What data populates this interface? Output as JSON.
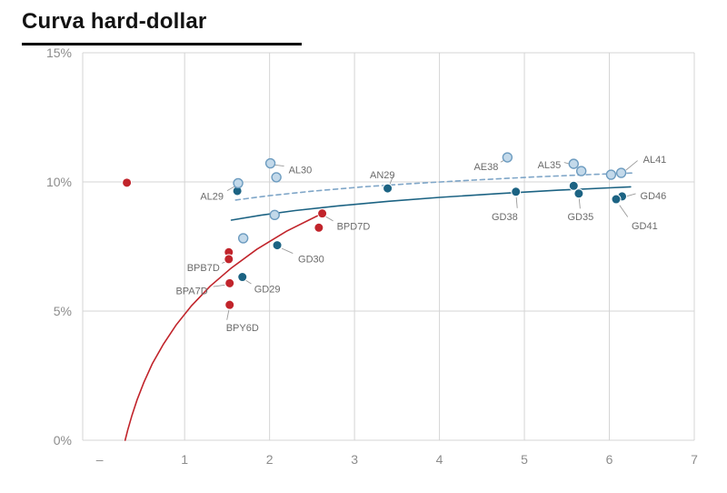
{
  "header": {
    "title": "Curva hard-dollar"
  },
  "chart_data": {
    "type": "scatter",
    "title": "Curva hard-dollar",
    "xlabel": "",
    "ylabel": "",
    "xlim": [
      -0.2,
      7
    ],
    "ylim": [
      0,
      15
    ],
    "grid": true,
    "legend": "none",
    "x_ticks": [
      {
        "v": 0,
        "label": "–",
        "grid": false
      },
      {
        "v": 1,
        "label": "1",
        "grid": true
      },
      {
        "v": 2,
        "label": "2",
        "grid": true
      },
      {
        "v": 3,
        "label": "3",
        "grid": true
      },
      {
        "v": 4,
        "label": "4",
        "grid": true
      },
      {
        "v": 5,
        "label": "5",
        "grid": true
      },
      {
        "v": 6,
        "label": "6",
        "grid": true
      },
      {
        "v": 7,
        "label": "7",
        "grid": true
      }
    ],
    "y_ticks": [
      {
        "v": 0,
        "label": "0%"
      },
      {
        "v": 5,
        "label": "5%"
      },
      {
        "v": 10,
        "label": "10%"
      },
      {
        "v": 15,
        "label": "15%"
      }
    ],
    "colors": {
      "red": "#c1242b",
      "dark_blue": "#1c6383",
      "light_blue_fill": "#c3d9ea",
      "light_blue_stroke": "#6d9cc0",
      "dashed_line": "#7fa6c8",
      "grid": "#d4d4d4",
      "axis_text": "#8c8c8c",
      "point_label": "#6b6b6b",
      "leader": "#9a9a9a"
    },
    "series": [
      {
        "name": "red-points",
        "style": "filled",
        "color_key": "red",
        "points": [
          {
            "x": 0.32,
            "y": 9.97
          },
          {
            "x": 1.52,
            "y": 7.28
          },
          {
            "x": 1.52,
            "y": 7.01,
            "label": "BPB7D",
            "dx": -10,
            "dy": 10,
            "anchor": "end"
          },
          {
            "x": 1.53,
            "y": 6.08,
            "label": "BPA7D",
            "dx": -24,
            "dy": 9,
            "anchor": "end"
          },
          {
            "x": 1.53,
            "y": 5.24,
            "label": "BPY6D",
            "dx": -4,
            "dy": 26,
            "anchor": "start"
          },
          {
            "x": 2.62,
            "y": 8.78,
            "label": "BPD7D",
            "dx": 16,
            "dy": 15,
            "anchor": "start"
          },
          {
            "x": 2.58,
            "y": 8.23
          }
        ]
      },
      {
        "name": "dark-blue-points",
        "style": "filled",
        "color_key": "dark_blue",
        "points": [
          {
            "x": 1.62,
            "y": 9.65
          },
          {
            "x": 2.09,
            "y": 7.55,
            "label": "GD30",
            "dx": 23,
            "dy": 16,
            "anchor": "start"
          },
          {
            "x": 1.68,
            "y": 6.32,
            "label": "GD29",
            "dx": 13,
            "dy": 14,
            "anchor": "start"
          },
          {
            "x": 3.39,
            "y": 9.75,
            "label": "AN29",
            "dx": 8,
            "dy": -14,
            "anchor": "end"
          },
          {
            "x": 4.9,
            "y": 9.62,
            "label": "GD38",
            "dx": 2,
            "dy": 28,
            "anchor": "end"
          },
          {
            "x": 5.58,
            "y": 9.85
          },
          {
            "x": 5.64,
            "y": 9.55,
            "label": "GD35",
            "dx": 2,
            "dy": 26,
            "anchor": "middle"
          },
          {
            "x": 6.15,
            "y": 9.44,
            "label": "GD46",
            "dx": 20,
            "dy": 0,
            "anchor": "start"
          },
          {
            "x": 6.08,
            "y": 9.33,
            "label": "GD41",
            "dx": 17,
            "dy": 30,
            "anchor": "start"
          }
        ]
      },
      {
        "name": "light-blue-points",
        "style": "hollow",
        "color_key": "light_blue_fill",
        "stroke_key": "light_blue_stroke",
        "points": [
          {
            "x": 1.63,
            "y": 9.95,
            "label": "AL29",
            "dx": -16,
            "dy": 15,
            "anchor": "end"
          },
          {
            "x": 1.69,
            "y": 7.82
          },
          {
            "x": 2.01,
            "y": 10.72,
            "label": "AL30",
            "dx": 20,
            "dy": 8,
            "anchor": "start"
          },
          {
            "x": 2.08,
            "y": 10.18
          },
          {
            "x": 2.06,
            "y": 8.72
          },
          {
            "x": 4.8,
            "y": 10.95,
            "label": "AE38",
            "dx": -10,
            "dy": 11,
            "anchor": "end"
          },
          {
            "x": 5.58,
            "y": 10.7,
            "label": "AL35",
            "dx": -14,
            "dy": 2,
            "anchor": "end"
          },
          {
            "x": 5.67,
            "y": 10.42
          },
          {
            "x": 6.02,
            "y": 10.28
          },
          {
            "x": 6.14,
            "y": 10.35,
            "label": "AL41",
            "dx": 24,
            "dy": -14,
            "anchor": "start"
          }
        ]
      }
    ],
    "curves": [
      {
        "name": "red-trend",
        "color_key": "red",
        "dashed": false,
        "points": [
          [
            0.3,
            0.0
          ],
          [
            0.33,
            0.39
          ],
          [
            0.38,
            0.96
          ],
          [
            0.44,
            1.56
          ],
          [
            0.52,
            2.24
          ],
          [
            0.62,
            2.96
          ],
          [
            0.75,
            3.72
          ],
          [
            0.9,
            4.46
          ],
          [
            1.08,
            5.2
          ],
          [
            1.3,
            5.96
          ],
          [
            1.55,
            6.67
          ],
          [
            1.85,
            7.39
          ],
          [
            2.2,
            8.09
          ],
          [
            2.62,
            8.78
          ]
        ]
      },
      {
        "name": "dark-blue-trend",
        "color_key": "dark_blue",
        "dashed": false,
        "points": [
          [
            1.55,
            8.52
          ],
          [
            1.9,
            8.71
          ],
          [
            2.3,
            8.89
          ],
          [
            2.8,
            9.07
          ],
          [
            3.4,
            9.25
          ],
          [
            4.0,
            9.4
          ],
          [
            4.7,
            9.55
          ],
          [
            5.4,
            9.68
          ],
          [
            6.0,
            9.77
          ],
          [
            6.25,
            9.81
          ]
        ]
      },
      {
        "name": "light-blue-trend",
        "color_key": "dashed_line",
        "dashed": true,
        "points": [
          [
            1.6,
            9.3
          ],
          [
            2.0,
            9.47
          ],
          [
            2.5,
            9.64
          ],
          [
            3.1,
            9.81
          ],
          [
            3.7,
            9.94
          ],
          [
            4.4,
            10.07
          ],
          [
            5.1,
            10.19
          ],
          [
            5.8,
            10.29
          ],
          [
            6.3,
            10.35
          ]
        ]
      }
    ]
  }
}
